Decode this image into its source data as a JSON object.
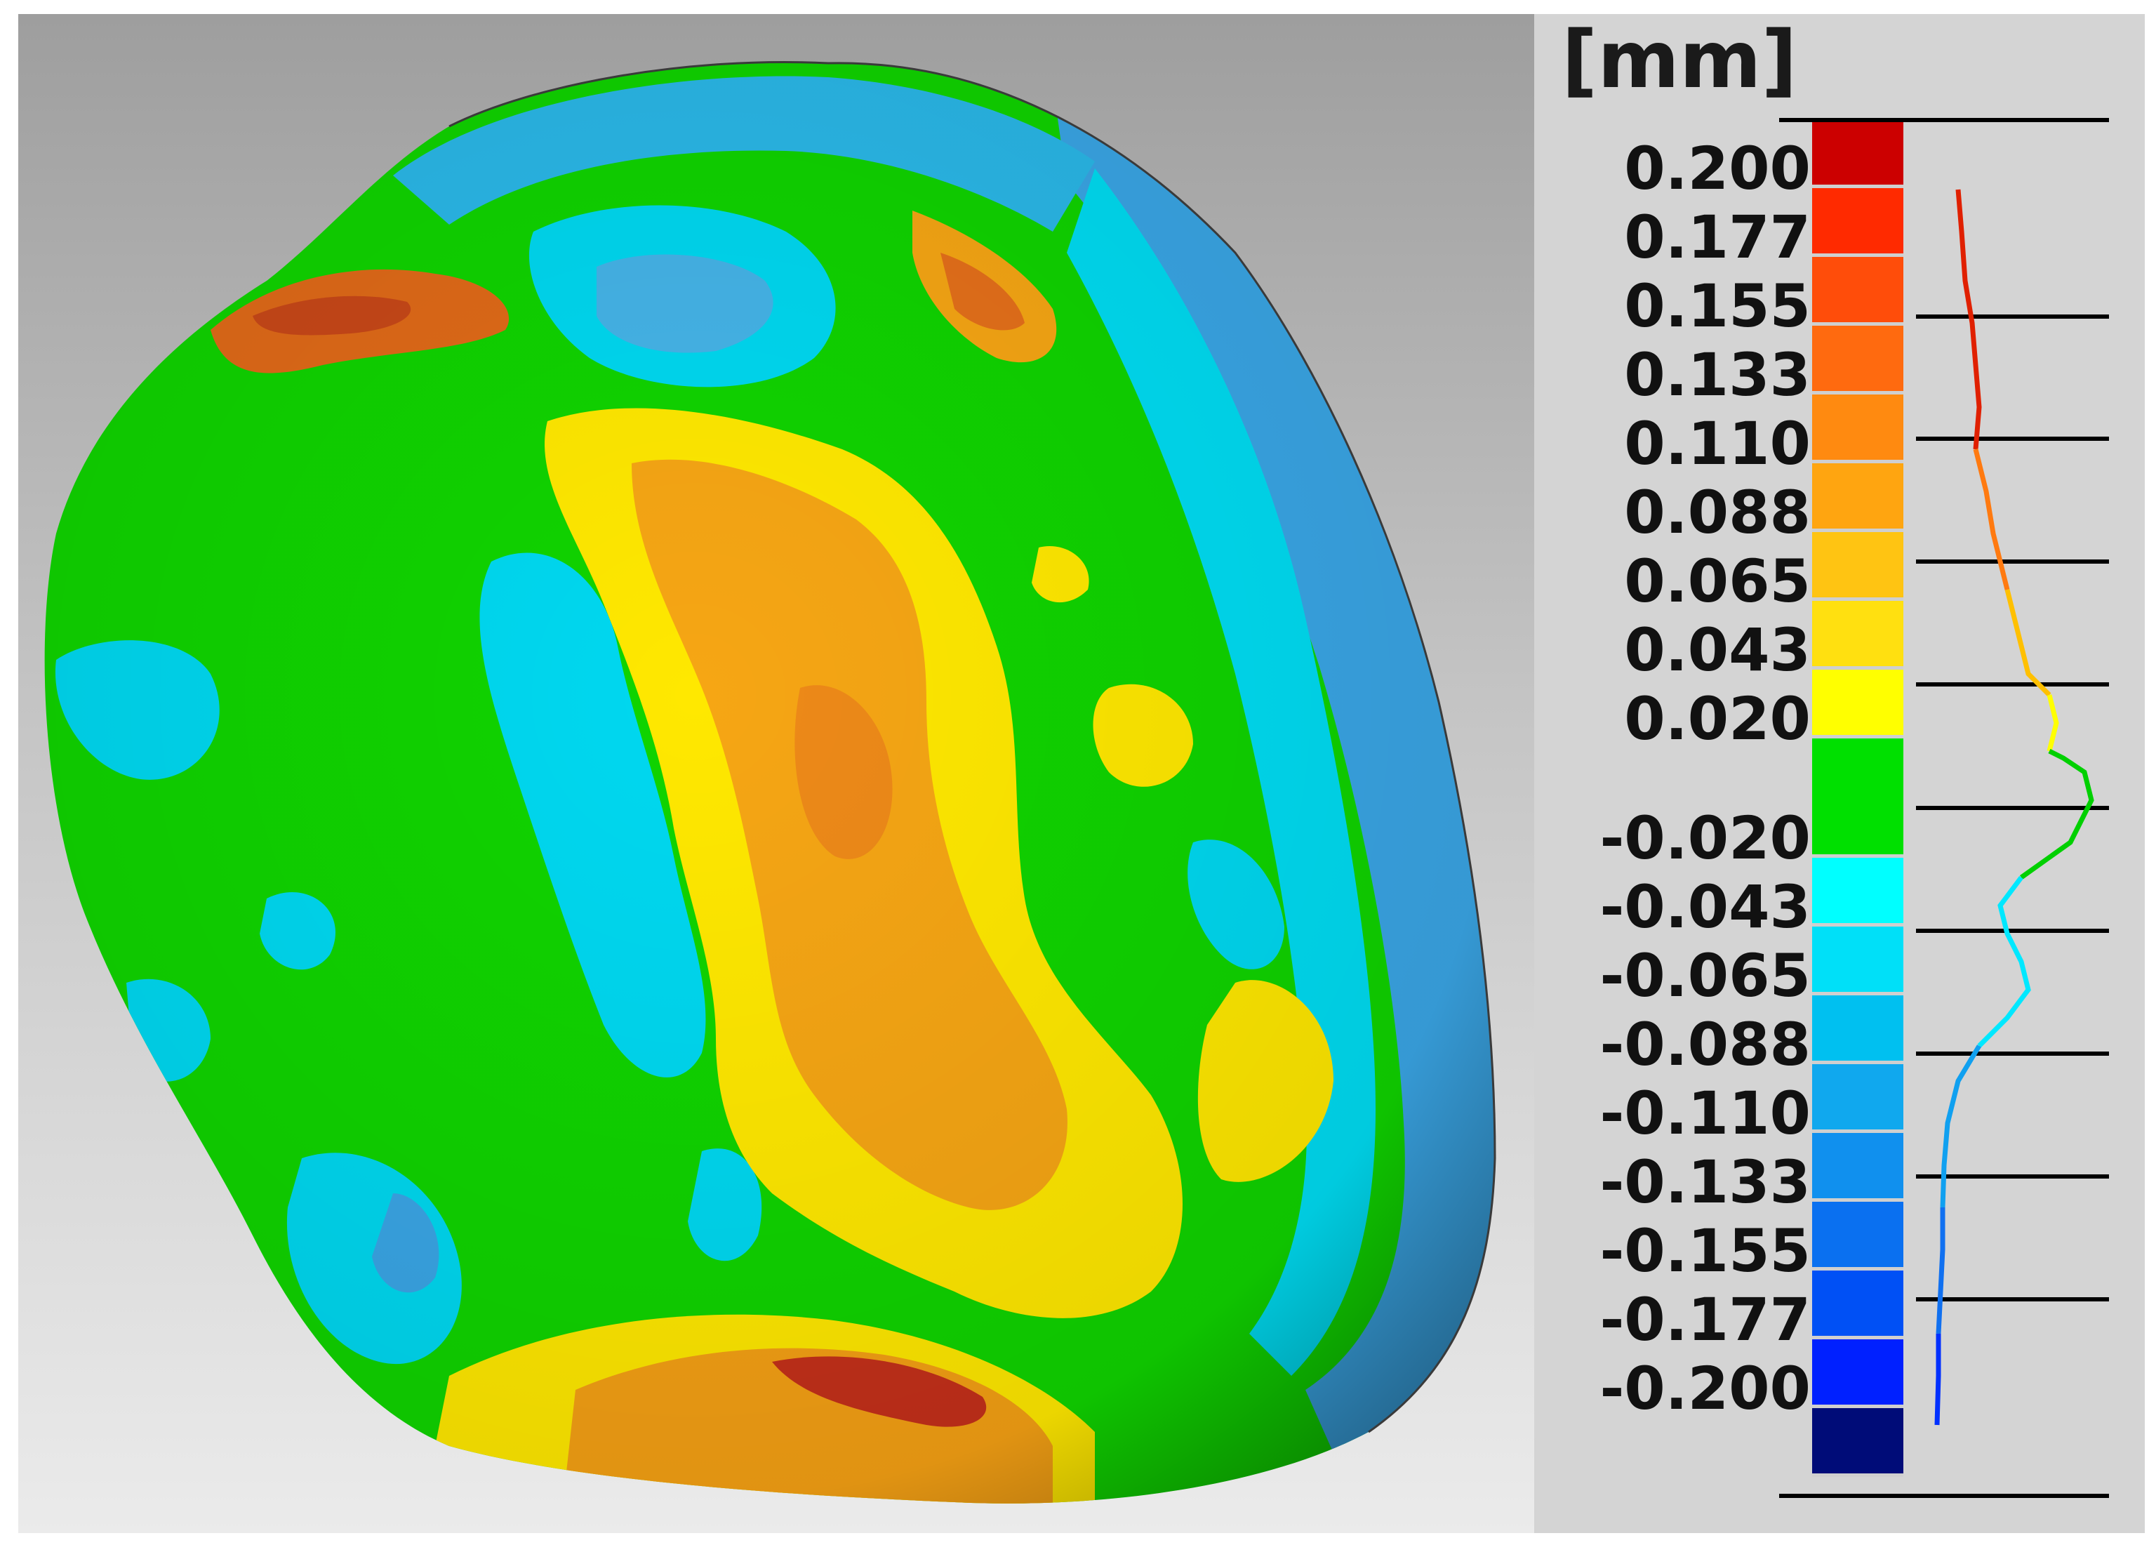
{
  "legend": {
    "unit": "[mm]",
    "tick_labels": [
      "0.200",
      "0.177",
      "0.155",
      "0.133",
      "0.110",
      "0.088",
      "0.065",
      "0.043",
      "0.020",
      "-0.020",
      "-0.043",
      "-0.065",
      "-0.088",
      "-0.110",
      "-0.133",
      "-0.155",
      "-0.177",
      "-0.200"
    ],
    "color_bins": [
      {
        "upper": "above 0.200",
        "color": "#cc0000"
      },
      {
        "upper": "0.200",
        "color": "#ff2a00"
      },
      {
        "upper": "0.177",
        "color": "#ff4d0a"
      },
      {
        "upper": "0.155",
        "color": "#ff6a0f"
      },
      {
        "upper": "0.133",
        "color": "#ff8a10"
      },
      {
        "upper": "0.110",
        "color": "#ffa510"
      },
      {
        "upper": "0.088",
        "color": "#ffc412"
      },
      {
        "upper": "0.065",
        "color": "#ffe010"
      },
      {
        "upper": "0.043",
        "color": "#ffff00"
      },
      {
        "upper": "0.020",
        "color": "#00e000"
      },
      {
        "upper": "-0.020",
        "color": "#00ffff"
      },
      {
        "upper": "-0.043",
        "color": "#00e0f8"
      },
      {
        "upper": "-0.065",
        "color": "#00c0f0"
      },
      {
        "upper": "-0.088",
        "color": "#10a8ee"
      },
      {
        "upper": "-0.110",
        "color": "#1090ee"
      },
      {
        "upper": "-0.133",
        "color": "#0a70f0"
      },
      {
        "upper": "-0.155",
        "color": "#0050f5"
      },
      {
        "upper": "-0.177",
        "color": "#0020ff"
      },
      {
        "upper": "-0.200",
        "color": "#000c78"
      }
    ],
    "histogram_line_colors": [
      "#e02000",
      "#ff7a10",
      "#ffc000",
      "#ffff00",
      "#00d000",
      "#00e8ff",
      "#10a0f0",
      "#1070f0",
      "#0030ff"
    ]
  },
  "object": {
    "description_colors": {
      "background_top": "#9e9e9e",
      "background_bottom": "#ebebeb",
      "surface_green": "#0fd400",
      "surface_cyan": "#00d8f0",
      "surface_lightblue": "#33a8e8",
      "surface_yellow": "#ffe800",
      "surface_orange": "#f4a010",
      "surface_red": "#c02a10"
    }
  }
}
